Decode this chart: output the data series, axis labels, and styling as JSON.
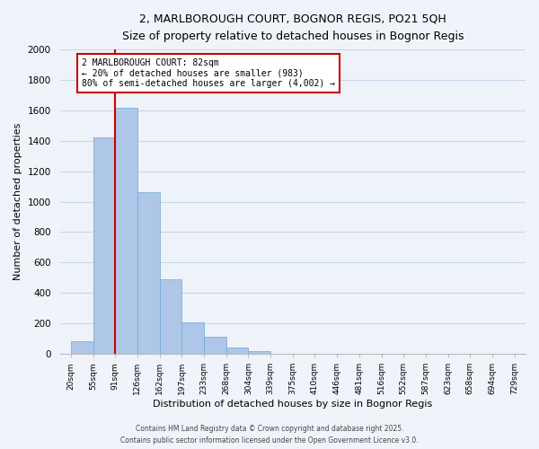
{
  "title": "2, MARLBOROUGH COURT, BOGNOR REGIS, PO21 5QH",
  "subtitle": "Size of property relative to detached houses in Bognor Regis",
  "xlabel": "Distribution of detached houses by size in Bognor Regis",
  "ylabel": "Number of detached properties",
  "bar_values": [
    80,
    1420,
    1620,
    1060,
    490,
    205,
    110,
    40,
    15,
    0,
    0,
    0,
    0,
    0,
    0,
    0,
    0,
    0,
    0,
    0
  ],
  "categories": [
    "20sqm",
    "55sqm",
    "91sqm",
    "126sqm",
    "162sqm",
    "197sqm",
    "233sqm",
    "268sqm",
    "304sqm",
    "339sqm",
    "375sqm",
    "410sqm",
    "446sqm",
    "481sqm",
    "516sqm",
    "552sqm",
    "587sqm",
    "623sqm",
    "658sqm",
    "694sqm",
    "729sqm"
  ],
  "bar_color": "#aec6e8",
  "bar_edge_color": "#6fa8d6",
  "background_color": "#f0f4fa",
  "plot_bg_color": "#eef2f9",
  "grid_color": "#c8d4e8",
  "ylim": [
    0,
    2000
  ],
  "yticks": [
    0,
    200,
    400,
    600,
    800,
    1000,
    1200,
    1400,
    1600,
    1800,
    2000
  ],
  "vline_color": "#cc0000",
  "annotation_title": "2 MARLBOROUGH COURT: 82sqm",
  "annotation_line1": "← 20% of detached houses are smaller (983)",
  "annotation_line2": "80% of semi-detached houses are larger (4,002) →",
  "annotation_box_color": "#ffffff",
  "annotation_box_edge": "#cc0000",
  "footer1": "Contains HM Land Registry data © Crown copyright and database right 2025.",
  "footer2": "Contains public sector information licensed under the Open Government Licence v3.0."
}
